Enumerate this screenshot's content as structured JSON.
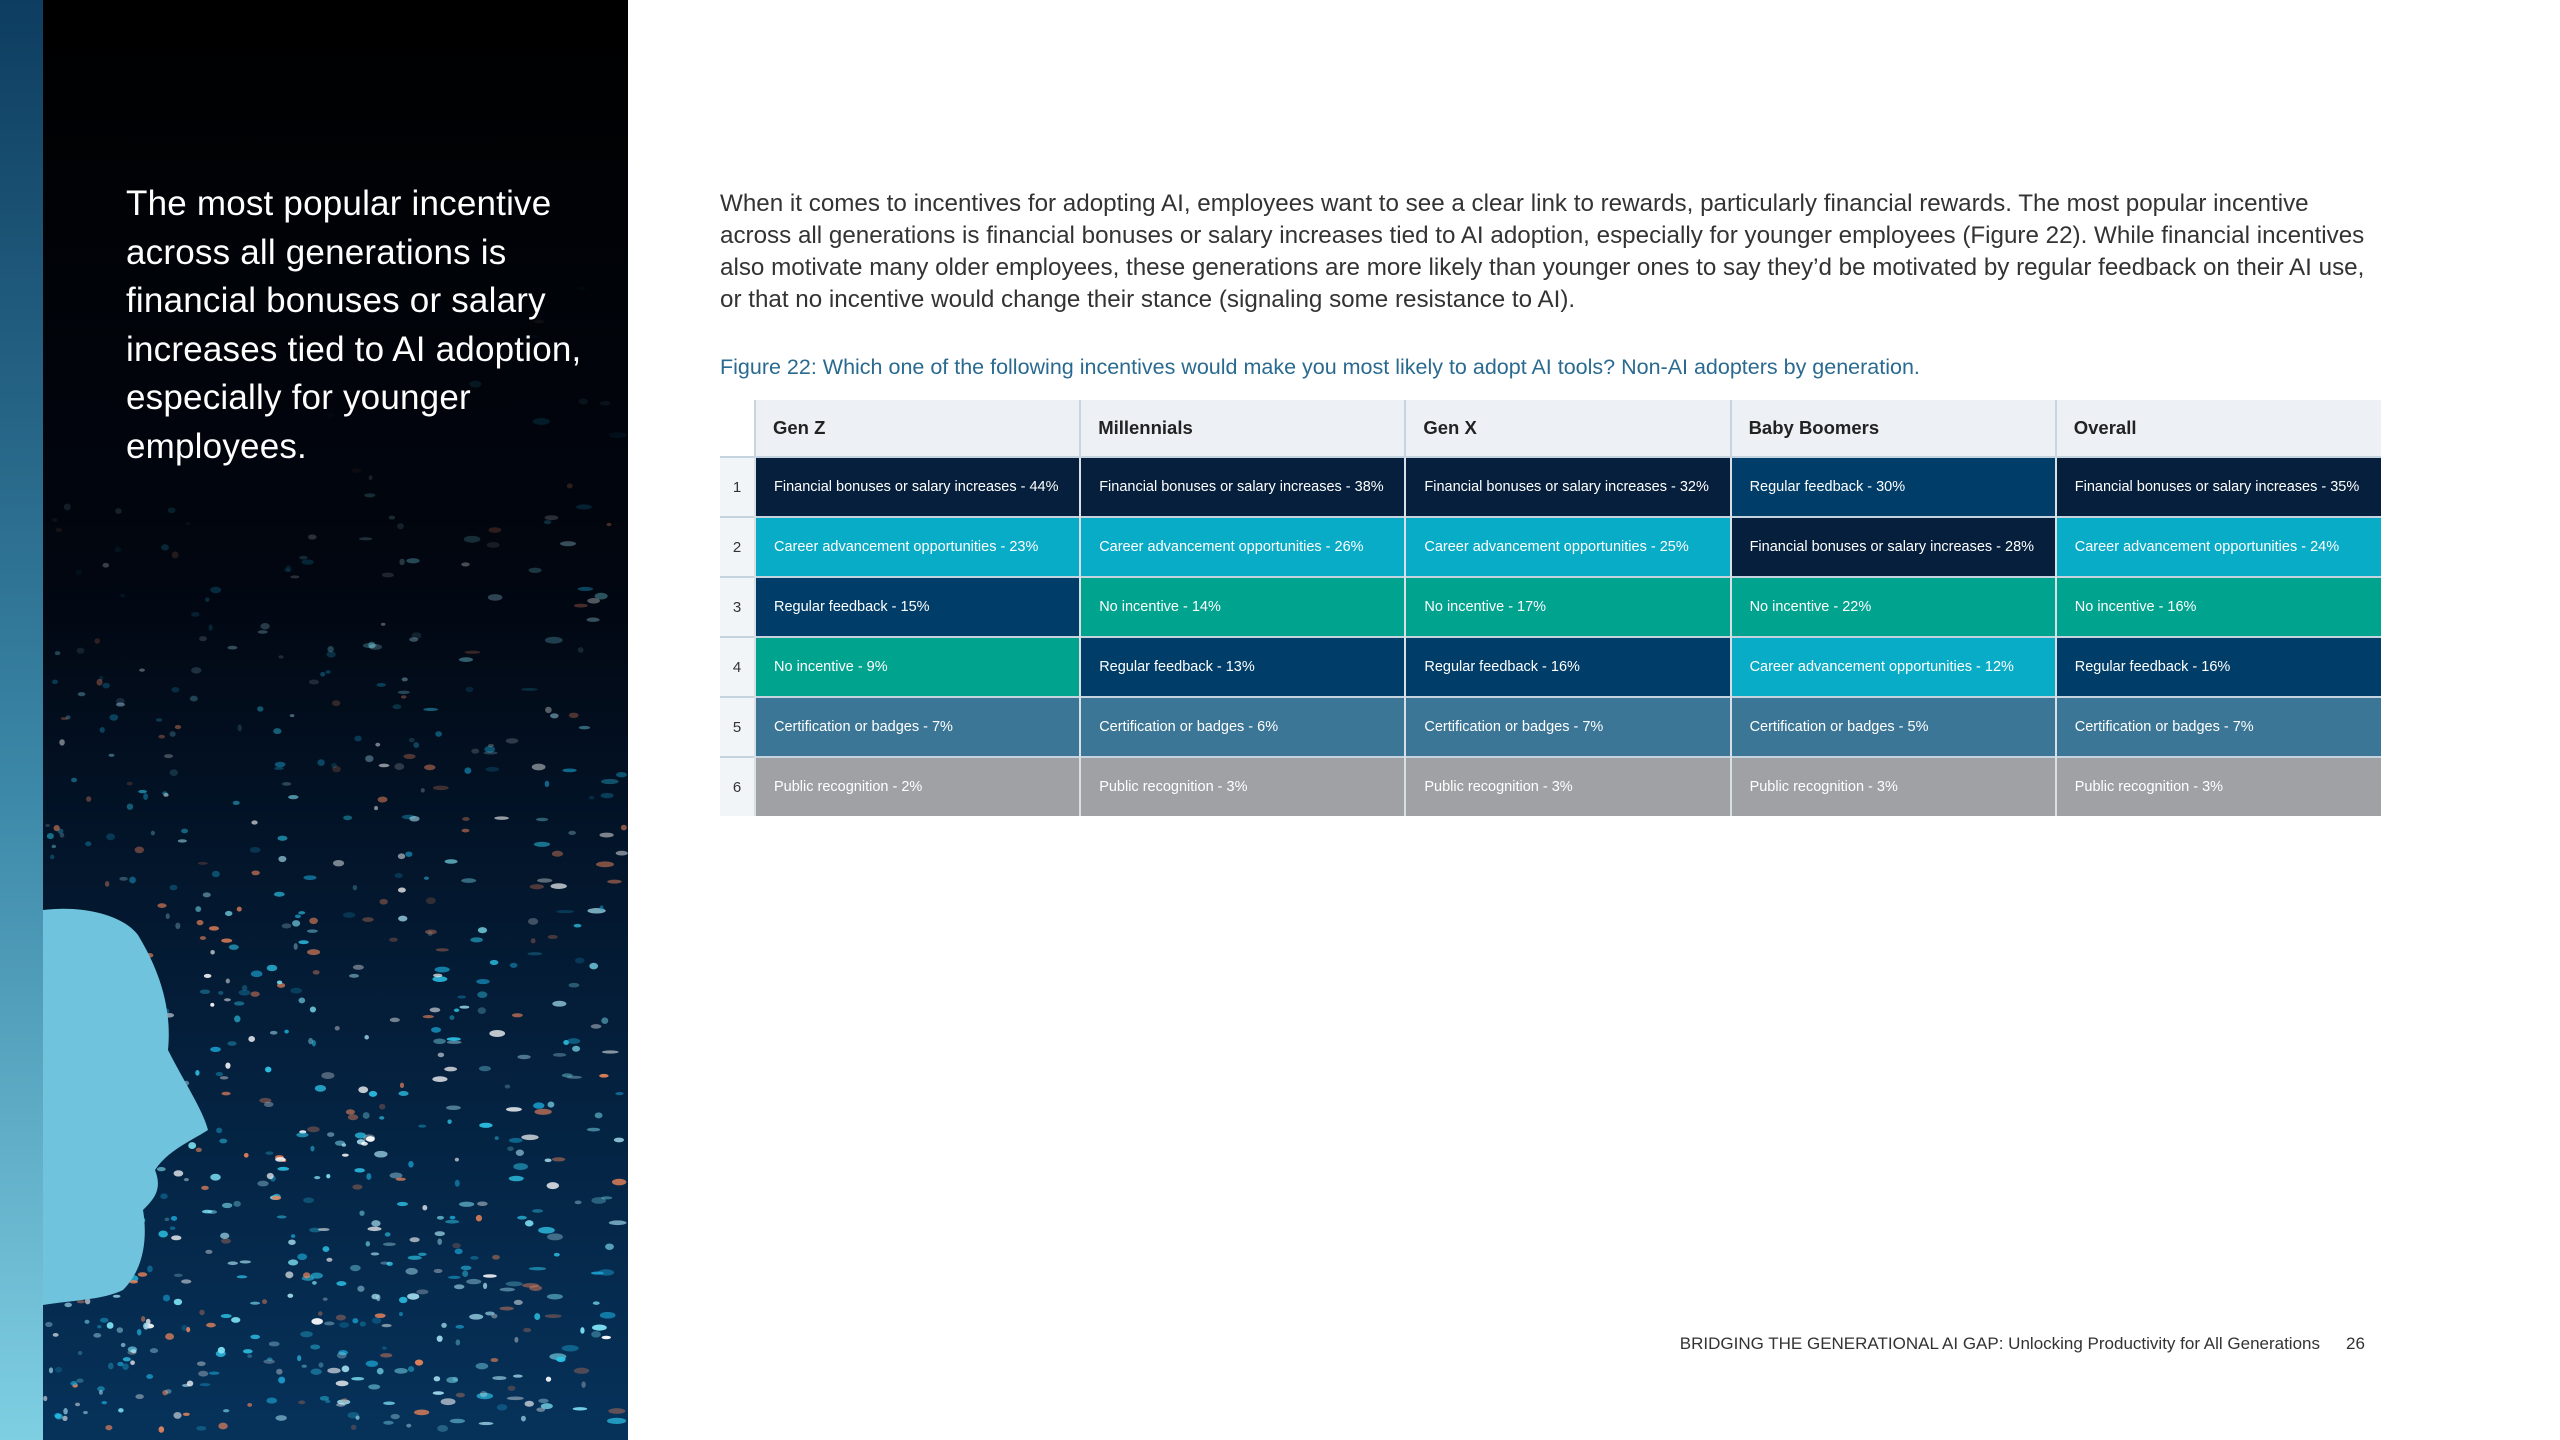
{
  "sidebar": {
    "quote": "The most popular incentive across all generations is financial bonuses or salary increases tied to AI adoption, especially for younger employees."
  },
  "main": {
    "paragraph": "When it comes to incentives for adopting AI, employees want to see a clear link to rewards, particularly financial rewards. The most popular incentive across all generations is financial bonuses or salary increases tied to AI adoption, especially for younger employees (Figure 22). While financial incentives also motivate many older employees, these generations are more likely than younger ones to say they’d be motivated by regular feedback on their AI use, or that no incentive would change their stance (signaling some resistance to AI).",
    "caption": "Figure 22: Which one of the following incentives would make you most likely to adopt AI tools? Non-AI adopters by generation."
  },
  "table": {
    "headers": [
      "Gen Z",
      "Millennials",
      "Gen X",
      "Baby Boomers",
      "Overall"
    ],
    "rows": [
      {
        "rank": "1",
        "cells": [
          {
            "text": "Financial bonuses or salary increases - 44%",
            "cat": "financial"
          },
          {
            "text": "Financial bonuses or salary increases - 38%",
            "cat": "financial"
          },
          {
            "text": "Financial bonuses or salary increases - 32%",
            "cat": "financial"
          },
          {
            "text": "Regular feedback - 30%",
            "cat": "feedback"
          },
          {
            "text": "Financial bonuses or salary increases - 35%",
            "cat": "financial"
          }
        ]
      },
      {
        "rank": "2",
        "cells": [
          {
            "text": "Career advancement opportunities - 23%",
            "cat": "career"
          },
          {
            "text": "Career advancement opportunities - 26%",
            "cat": "career"
          },
          {
            "text": "Career advancement opportunities - 25%",
            "cat": "career"
          },
          {
            "text": "Financial bonuses or salary increases - 28%",
            "cat": "financial"
          },
          {
            "text": "Career advancement opportunities - 24%",
            "cat": "career"
          }
        ]
      },
      {
        "rank": "3",
        "cells": [
          {
            "text": "Regular feedback - 15%",
            "cat": "feedback"
          },
          {
            "text": "No incentive - 14%",
            "cat": "none"
          },
          {
            "text": "No incentive - 17%",
            "cat": "none"
          },
          {
            "text": "No incentive - 22%",
            "cat": "none"
          },
          {
            "text": "No incentive - 16%",
            "cat": "none"
          }
        ]
      },
      {
        "rank": "4",
        "cells": [
          {
            "text": "No incentive - 9%",
            "cat": "none"
          },
          {
            "text": "Regular feedback - 13%",
            "cat": "feedback"
          },
          {
            "text": "Regular feedback - 16%",
            "cat": "feedback"
          },
          {
            "text": "Career advancement opportunities - 12%",
            "cat": "career"
          },
          {
            "text": "Regular feedback - 16%",
            "cat": "feedback"
          }
        ]
      },
      {
        "rank": "5",
        "cells": [
          {
            "text": "Certification or badges - 7%",
            "cat": "cert"
          },
          {
            "text": "Certification or badges - 6%",
            "cat": "cert"
          },
          {
            "text": "Certification or badges - 7%",
            "cat": "cert"
          },
          {
            "text": "Certification or badges - 5%",
            "cat": "cert"
          },
          {
            "text": "Certification or badges - 7%",
            "cat": "cert"
          }
        ]
      },
      {
        "rank": "6",
        "cells": [
          {
            "text": "Public recognition - 2%",
            "cat": "public"
          },
          {
            "text": "Public recognition - 3%",
            "cat": "public"
          },
          {
            "text": "Public recognition - 3%",
            "cat": "public"
          },
          {
            "text": "Public recognition - 3%",
            "cat": "public"
          },
          {
            "text": "Public recognition - 3%",
            "cat": "public"
          }
        ]
      }
    ],
    "colors": {
      "financial": "#061f3d",
      "career": "#09acc7",
      "feedback": "#003e69",
      "none": "#00a38e",
      "cert": "#3c7696",
      "public": "#a0a1a5"
    }
  },
  "footer": {
    "title": "BRIDGING THE GENERATIONAL AI GAP: Unlocking Productivity for All Generations",
    "page": "26"
  }
}
